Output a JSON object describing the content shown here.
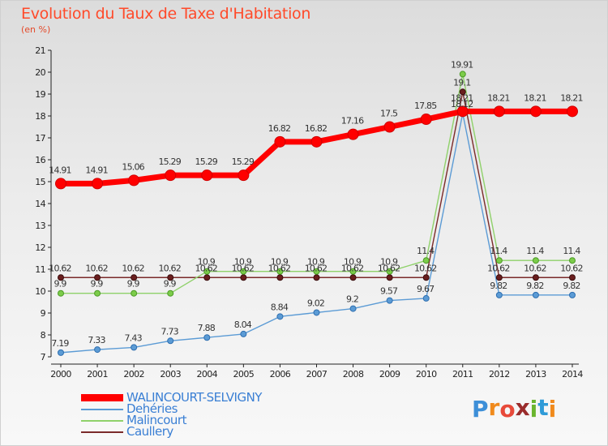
{
  "title": "Evolution du Taux de Taxe d'Habitation",
  "unit_label": "(en %)",
  "brand": {
    "text": "Proxiti",
    "letters": [
      "P",
      "r",
      "o",
      "x",
      "i",
      "t",
      "i"
    ],
    "letter_colors": [
      "#3d8fd8",
      "#f08a1c",
      "#e84a3a",
      "#9a2c2c",
      "#6ab52e",
      "#2f9bd8",
      "#f08a1c"
    ]
  },
  "chart_data": {
    "type": "line",
    "title": "Evolution du Taux de Taxe d'Habitation",
    "ylabel": "(en %)",
    "xlabel": "",
    "x": [
      "2000",
      "2001",
      "2002",
      "2003",
      "2004",
      "2005",
      "2006",
      "2007",
      "2008",
      "2009",
      "2010",
      "2011",
      "2012",
      "2013",
      "2014"
    ],
    "ylim": [
      7,
      21
    ],
    "yticks": [
      "7",
      "8",
      "9",
      "10",
      "11",
      "12",
      "13",
      "14",
      "15",
      "16",
      "17",
      "18",
      "19",
      "20",
      "21"
    ],
    "grid": false,
    "series": [
      {
        "name": "WALINCOURT-SELVIGNY",
        "color": "#ff0000",
        "values": [
          14.91,
          14.91,
          15.06,
          15.29,
          15.29,
          15.29,
          16.82,
          16.82,
          17.16,
          17.5,
          17.85,
          18.21,
          18.21,
          18.21,
          18.21
        ],
        "labels": [
          "14.91",
          "14.91",
          "15.06",
          "15.29",
          "15.29",
          "15.29",
          "16.82",
          "16.82",
          "17.16",
          "17.5",
          "17.85",
          "18.21",
          "18.21",
          "18.21",
          "18.21"
        ]
      },
      {
        "name": "Dehéries",
        "color": "#5b9bd5",
        "values": [
          7.19,
          7.33,
          7.43,
          7.73,
          7.88,
          8.04,
          8.84,
          9.02,
          9.2,
          9.57,
          9.67,
          18.12,
          9.82,
          9.82,
          9.82
        ],
        "labels": [
          "7.19",
          "7.33",
          "7.43",
          "7.73",
          "7.88",
          "8.04",
          "8.84",
          "9.02",
          "9.2",
          "9.57",
          "9.67",
          "18.12",
          "9.82",
          "9.82",
          "9.82"
        ]
      },
      {
        "name": "Malincourt",
        "color": "#8fd16a",
        "values": [
          9.9,
          9.9,
          9.9,
          9.9,
          10.9,
          10.9,
          10.9,
          10.9,
          10.9,
          10.9,
          11.4,
          19.91,
          11.4,
          11.4,
          11.4
        ],
        "labels": [
          "9.9",
          "9.9",
          "9.9",
          "9.9",
          "10.9",
          "10.9",
          "10.9",
          "10.9",
          "10.9",
          "10.9",
          "11.4",
          "19.91",
          "11.4",
          "11.4",
          "11.4"
        ]
      },
      {
        "name": "Caullery",
        "color": "#7a2a2a",
        "values": [
          10.62,
          10.62,
          10.62,
          10.62,
          10.62,
          10.62,
          10.62,
          10.62,
          10.62,
          10.62,
          10.62,
          19.1,
          10.62,
          10.62,
          10.62
        ],
        "labels": [
          "10.62",
          "10.62",
          "10.62",
          "10.62",
          "10.62",
          "10.62",
          "10.62",
          "10.62",
          "10.62",
          "10.62",
          "10.62",
          "19.1",
          "10.62",
          "10.62",
          "10.62"
        ]
      }
    ]
  }
}
